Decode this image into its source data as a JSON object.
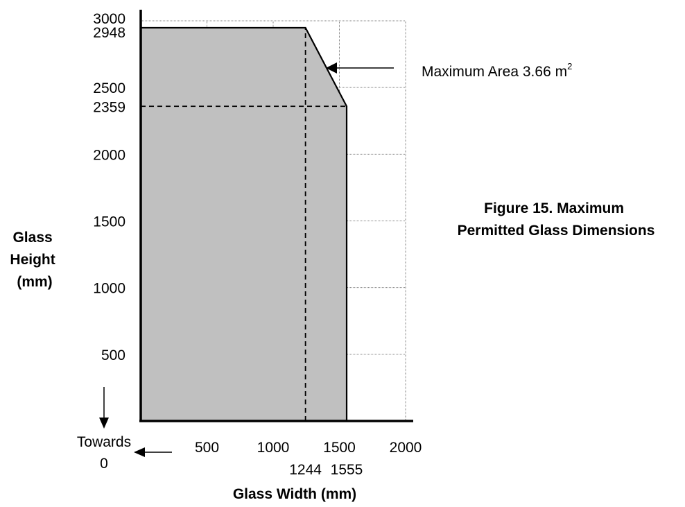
{
  "chart_data": {
    "type": "area",
    "title": "Figure 15. Maximum Permitted Glass Dimensions",
    "title_lines": [
      "Figure 15. Maximum",
      "Permitted Glass Dimensions"
    ],
    "xlabel": "Glass Width (mm)",
    "ylabel_lines": [
      "Glass",
      "Height",
      "(mm)"
    ],
    "xlim": [
      0,
      2000
    ],
    "ylim": [
      0,
      3000
    ],
    "x_ticks": [
      500,
      1000,
      1500,
      2000
    ],
    "x_extra_ticks": [
      1244,
      1555
    ],
    "y_ticks": [
      500,
      1000,
      1500,
      2000,
      2500,
      3000
    ],
    "y_extra_ticks": [
      2359,
      2948
    ],
    "grid": true,
    "series": [
      {
        "x": [
          0,
          1244,
          1555,
          1555
        ],
        "y": [
          2948,
          2948,
          2359,
          0
        ]
      }
    ],
    "reference_lines": [
      {
        "x": [
          1244,
          1244
        ],
        "y": [
          0,
          2948
        ],
        "style": "dashed"
      },
      {
        "x": [
          0,
          1555
        ],
        "y": [
          2359,
          2359
        ],
        "style": "dashed"
      }
    ],
    "annotation": {
      "text": "Maximum Area 3.66 m",
      "superscript": "2"
    },
    "origin_note": {
      "line1": "Towards",
      "line2": "0"
    },
    "fill_color": "#c0c0c0",
    "line_color": "#000000",
    "grid_color": "#808080"
  }
}
